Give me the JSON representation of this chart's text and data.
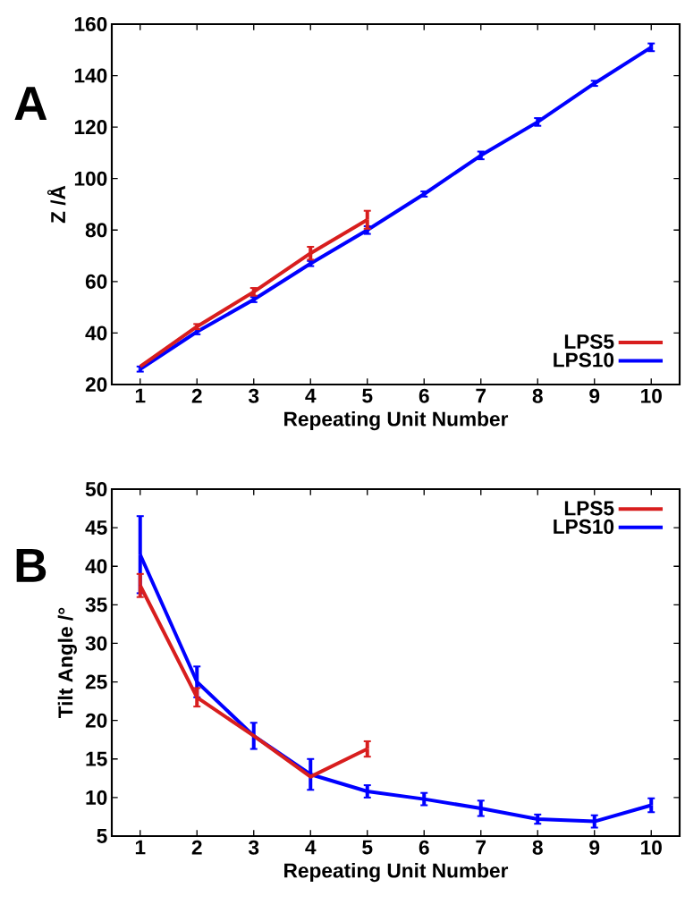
{
  "chart_data": [
    {
      "type": "line",
      "annotations": [
        "A"
      ],
      "xlabel": "Repeating Unit Number",
      "ylabel": "Z /Å",
      "x": [
        1,
        2,
        3,
        4,
        5,
        6,
        7,
        8,
        9,
        10
      ],
      "series": [
        {
          "name": "LPS5",
          "color": "#d81e1e",
          "x": [
            1,
            2,
            3,
            4,
            5
          ],
          "values": [
            27,
            42.5,
            56,
            71,
            84
          ],
          "errors": [
            null,
            1,
            1.5,
            2.5,
            3.5
          ]
        },
        {
          "name": "LPS10",
          "color": "#0000ff",
          "values": [
            26,
            40.5,
            53,
            67,
            80,
            94,
            109,
            122,
            137,
            151
          ],
          "errors": [
            1,
            1,
            1,
            1,
            1.5,
            1,
            1.5,
            1.5,
            1,
            1.5
          ]
        }
      ],
      "xlim": [
        0.5,
        10.5
      ],
      "xticks": [
        1,
        2,
        3,
        4,
        5,
        6,
        7,
        8,
        9,
        10
      ],
      "ylim": [
        20,
        160
      ],
      "yticks": [
        20,
        40,
        60,
        80,
        100,
        120,
        140,
        160
      ],
      "legend": "bottom right",
      "grid": false,
      "line_style": "solid"
    },
    {
      "type": "line",
      "annotations": [
        "B"
      ],
      "xlabel": "Repeating Unit Number",
      "ylabel": "Tilt Angle /°",
      "x": [
        1,
        2,
        3,
        4,
        5,
        6,
        7,
        8,
        9,
        10
      ],
      "series": [
        {
          "name": "LPS5",
          "color": "#d81e1e",
          "x": [
            1,
            2,
            3,
            4,
            5
          ],
          "values": [
            37.5,
            23,
            18,
            12.7,
            16.3
          ],
          "errors": [
            1.5,
            1.2,
            null,
            null,
            1
          ]
        },
        {
          "name": "LPS10",
          "color": "#0000ff",
          "values": [
            41.5,
            25,
            18,
            13,
            10.8,
            9.8,
            8.6,
            7.2,
            6.9,
            9
          ],
          "errors": [
            5,
            2,
            1.7,
            2,
            0.8,
            0.8,
            1,
            0.6,
            0.8,
            0.9
          ]
        }
      ],
      "xlim": [
        0.5,
        10.5
      ],
      "xticks": [
        1,
        2,
        3,
        4,
        5,
        6,
        7,
        8,
        9,
        10
      ],
      "ylim": [
        5,
        50
      ],
      "yticks": [
        5,
        10,
        15,
        20,
        25,
        30,
        35,
        40,
        45,
        50
      ],
      "legend": "top right",
      "grid": false,
      "line_style": "solid"
    }
  ]
}
